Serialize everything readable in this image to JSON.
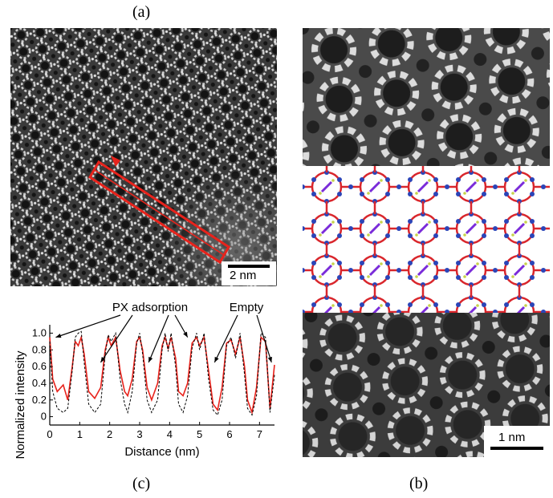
{
  "figure": {
    "label_a": "(a)",
    "label_b": "(b)",
    "label_c": "(c)"
  },
  "panel_a": {
    "scale_bar": "2 nm",
    "colors": {
      "box": "#e8231c",
      "background": "#3a3a3a",
      "pore": "#1a1a1a",
      "ring": "#cfcfcf"
    }
  },
  "panel_b": {
    "scale_bar": "1 nm",
    "colors": {
      "oxygen": "#d9262c",
      "silicon": "#2b45b8",
      "molecule": "#7a2bd9",
      "hydrogen": "#c7d34a"
    }
  },
  "chart_data": {
    "type": "line",
    "xlabel": "Distance (nm)",
    "ylabel": "Normalized intensity",
    "xlim": [
      0,
      7.5
    ],
    "ylim": [
      -0.1,
      1.1
    ],
    "x_ticks": [
      "0",
      "1",
      "2",
      "3",
      "4",
      "5",
      "6",
      "7"
    ],
    "y_ticks": [
      "0",
      "0.2",
      "0.4",
      "0.6",
      "0.8",
      "1.0"
    ],
    "annotations": [
      "PX adsorption",
      "Empty"
    ],
    "series": [
      {
        "style": "solid",
        "color": "#e8231c",
        "x": [
          0,
          0.1,
          0.25,
          0.45,
          0.6,
          0.75,
          0.85,
          0.95,
          1.05,
          1.15,
          1.3,
          1.5,
          1.7,
          1.85,
          1.95,
          2.05,
          2.2,
          2.35,
          2.5,
          2.6,
          2.75,
          2.9,
          3.0,
          3.1,
          3.25,
          3.4,
          3.6,
          3.75,
          3.85,
          3.95,
          4.05,
          4.2,
          4.3,
          4.45,
          4.6,
          4.75,
          4.9,
          5.0,
          5.15,
          5.3,
          5.45,
          5.6,
          5.75,
          5.9,
          6.05,
          6.2,
          6.35,
          6.5,
          6.6,
          6.75,
          6.9,
          7.05,
          7.2,
          7.35,
          7.5
        ],
        "y": [
          0.95,
          0.45,
          0.3,
          0.38,
          0.2,
          0.6,
          0.9,
          0.85,
          0.95,
          0.75,
          0.3,
          0.22,
          0.35,
          0.8,
          0.95,
          0.85,
          0.95,
          0.55,
          0.3,
          0.25,
          0.45,
          0.9,
          0.95,
          0.8,
          0.35,
          0.2,
          0.4,
          0.85,
          0.95,
          0.82,
          0.95,
          0.7,
          0.3,
          0.25,
          0.4,
          0.88,
          0.95,
          0.85,
          0.95,
          0.55,
          0.15,
          0.08,
          0.35,
          0.88,
          0.92,
          0.75,
          0.95,
          0.6,
          0.2,
          0.05,
          0.35,
          0.95,
          0.9,
          0.1,
          0.62
        ]
      },
      {
        "style": "dashed",
        "color": "#000000",
        "x": [
          0,
          0.1,
          0.25,
          0.45,
          0.6,
          0.75,
          0.85,
          0.95,
          1.05,
          1.15,
          1.3,
          1.5,
          1.7,
          1.85,
          1.95,
          2.05,
          2.2,
          2.35,
          2.5,
          2.6,
          2.75,
          2.9,
          3.0,
          3.1,
          3.25,
          3.4,
          3.6,
          3.75,
          3.85,
          3.95,
          4.05,
          4.2,
          4.3,
          4.45,
          4.6,
          4.75,
          4.9,
          5.0,
          5.15,
          5.3,
          5.45,
          5.6,
          5.75,
          5.9,
          6.05,
          6.2,
          6.35,
          6.5,
          6.6,
          6.75,
          6.9,
          7.05,
          7.2,
          7.35,
          7.5
        ],
        "y": [
          0.9,
          0.3,
          0.1,
          0.05,
          0.1,
          0.55,
          0.95,
          1.0,
          1.02,
          0.65,
          0.15,
          0.05,
          0.15,
          0.75,
          0.98,
          0.9,
          1.0,
          0.45,
          0.15,
          0.05,
          0.3,
          0.88,
          1.0,
          0.75,
          0.2,
          0.05,
          0.2,
          0.8,
          1.0,
          0.78,
          1.0,
          0.6,
          0.15,
          0.05,
          0.25,
          0.82,
          1.0,
          0.8,
          1.0,
          0.45,
          0.08,
          0.02,
          0.2,
          0.85,
          0.95,
          0.7,
          1.0,
          0.5,
          0.1,
          0.02,
          0.25,
          1.0,
          0.95,
          0.05,
          0.5
        ]
      }
    ]
  }
}
